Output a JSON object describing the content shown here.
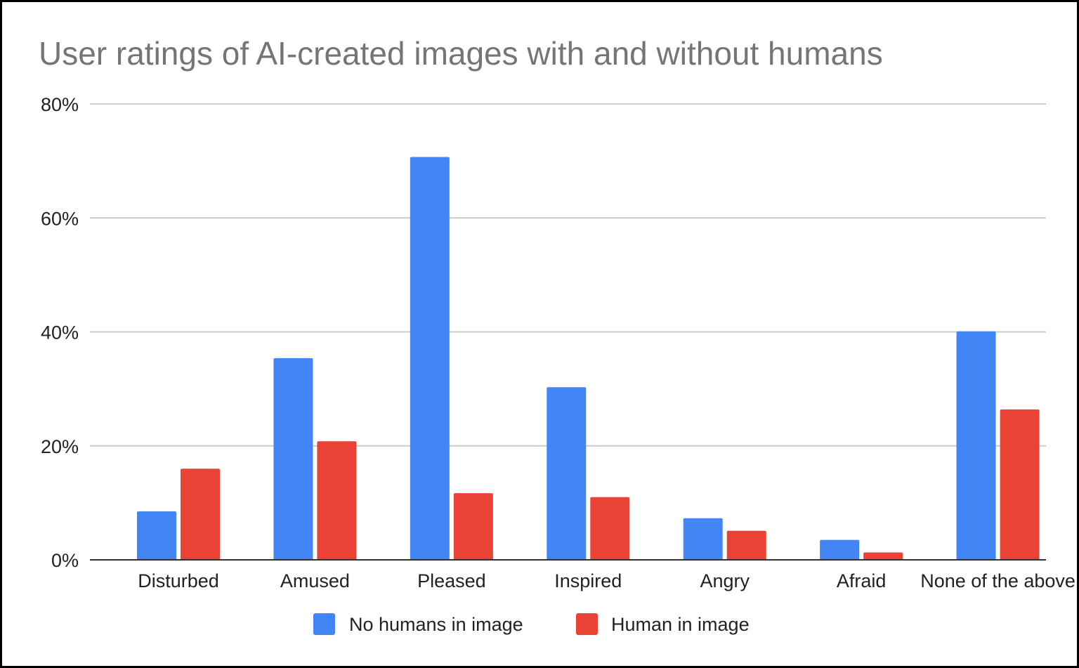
{
  "chart_data": {
    "type": "bar",
    "title": "User ratings of AI-created images with and without humans",
    "xlabel": "",
    "ylabel": "",
    "categories": [
      "Disturbed",
      "Amused",
      "Pleased",
      "Inspired",
      "Angry",
      "Afraid",
      "None of the above"
    ],
    "series": [
      {
        "name": "No humans in image",
        "color": "#4285f4",
        "values": [
          8.5,
          35.4,
          70.7,
          30.3,
          7.3,
          3.5,
          40.1
        ]
      },
      {
        "name": "Human in image",
        "color": "#ea4335",
        "values": [
          16.0,
          20.8,
          11.7,
          11.0,
          5.1,
          1.3,
          26.4
        ]
      }
    ],
    "ylim": [
      0,
      80
    ],
    "yticks": [
      "0%",
      "20%",
      "40%",
      "60%",
      "80%"
    ],
    "grid": true,
    "legend_position": "bottom"
  }
}
